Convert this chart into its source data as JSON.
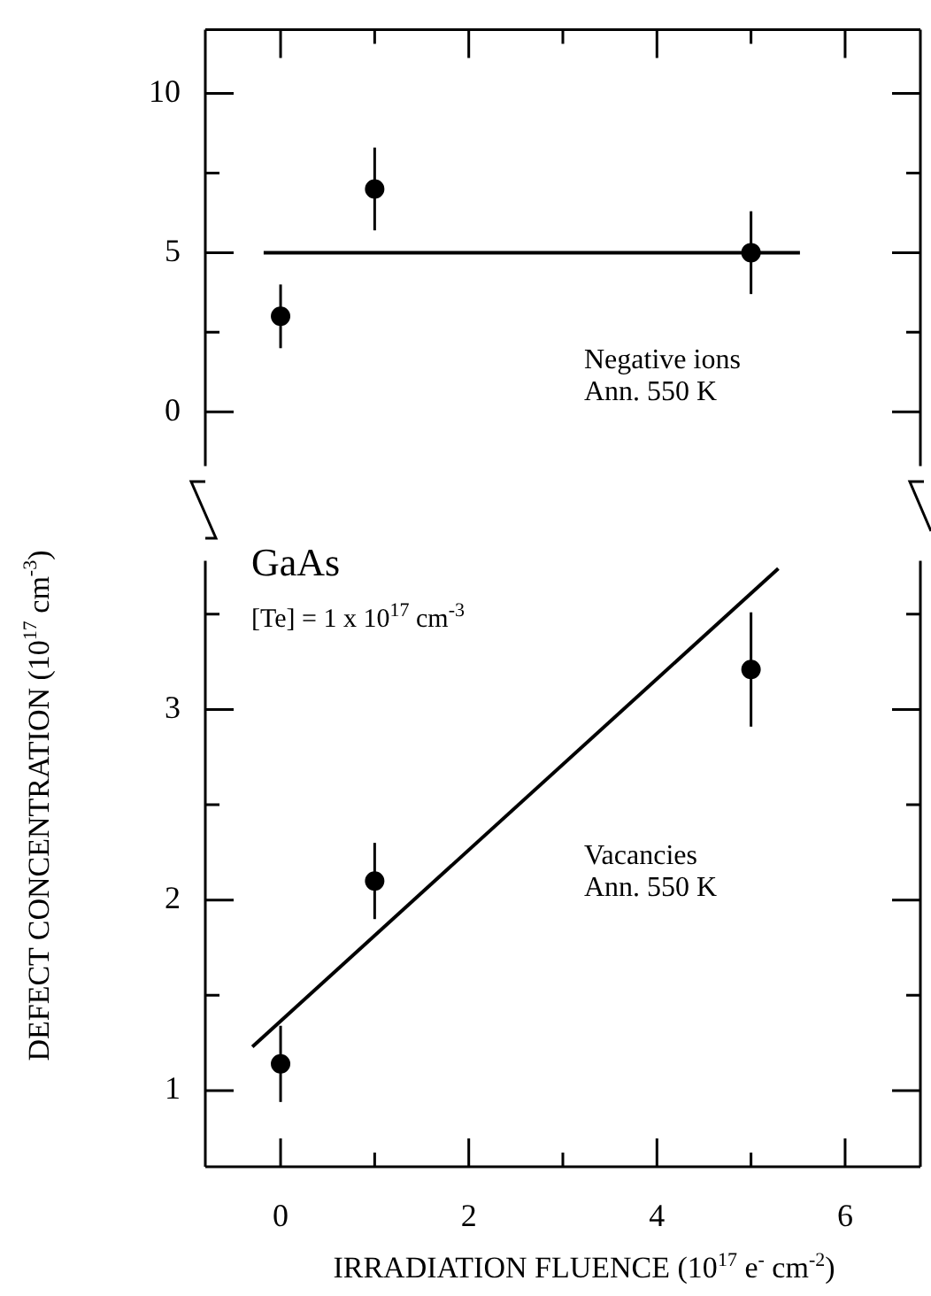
{
  "chart_data": [
    {
      "type": "scatter",
      "ylabel": "DEFECT CONCENTRATION (10$^{17}$ cm$^{-3}$)",
      "annotations": [
        "Negative ions\nAnn. 550 K"
      ],
      "xlim": [
        -0.8,
        6.8
      ],
      "xticks": [
        0,
        {
          "value": 1,
          "label": null
        },
        2,
        {
          "value": 3,
          "label": null
        },
        4,
        {
          "value": 5,
          "label": null
        },
        6
      ],
      "ylim": [
        -1.7,
        12
      ],
      "yticks": [
        0,
        {
          "value": 2.5,
          "label": null
        },
        5,
        {
          "value": 7.5,
          "label": null
        },
        10
      ],
      "tick_labels": "y",
      "grid": false,
      "legend": false,
      "series": [
        {
          "type": "scatter",
          "marker": "circle",
          "color": "#000000",
          "x": [
            0,
            1,
            5
          ],
          "values": [
            3,
            7,
            5
          ],
          "errors": [
            1,
            1.3,
            1.3
          ]
        },
        {
          "type": "line",
          "marker": "none",
          "color": "#000000",
          "x": [
            -0.18,
            5.52
          ],
          "values": [
            5,
            5
          ]
        }
      ]
    },
    {
      "type": "scatter",
      "xlabel": "IRRADIATION FLUENCE (10$^{17}$ e$^{-}$ cm$^{-2}$)",
      "annotations": [
        "GaAs",
        "[Te] = 1 x 10$^{17}$ cm$^{-3}$",
        "Vacancies\nAnn. 550 K"
      ],
      "xlim": [
        -0.8,
        6.8
      ],
      "xticks": [
        0,
        {
          "value": 1,
          "label": null
        },
        2,
        {
          "value": 3,
          "label": null
        },
        4,
        {
          "value": 5,
          "label": null
        },
        6
      ],
      "ylim": [
        0.6,
        3.78
      ],
      "yticks": [
        1,
        {
          "value": 1.5,
          "label": null
        },
        2,
        {
          "value": 2.5,
          "label": null
        },
        3,
        {
          "value": 3.5,
          "label": null
        }
      ],
      "grid": false,
      "legend": false,
      "series": [
        {
          "type": "scatter",
          "marker": "circle",
          "color": "#000000",
          "x": [
            0,
            1,
            5
          ],
          "values": [
            1.14,
            2.1,
            3.21
          ],
          "errors": [
            0.2,
            0.2,
            0.3
          ]
        },
        {
          "type": "line",
          "marker": "none",
          "color": "#000000",
          "x": [
            -0.3,
            5.29
          ],
          "values": [
            1.23,
            3.74
          ]
        }
      ]
    }
  ]
}
